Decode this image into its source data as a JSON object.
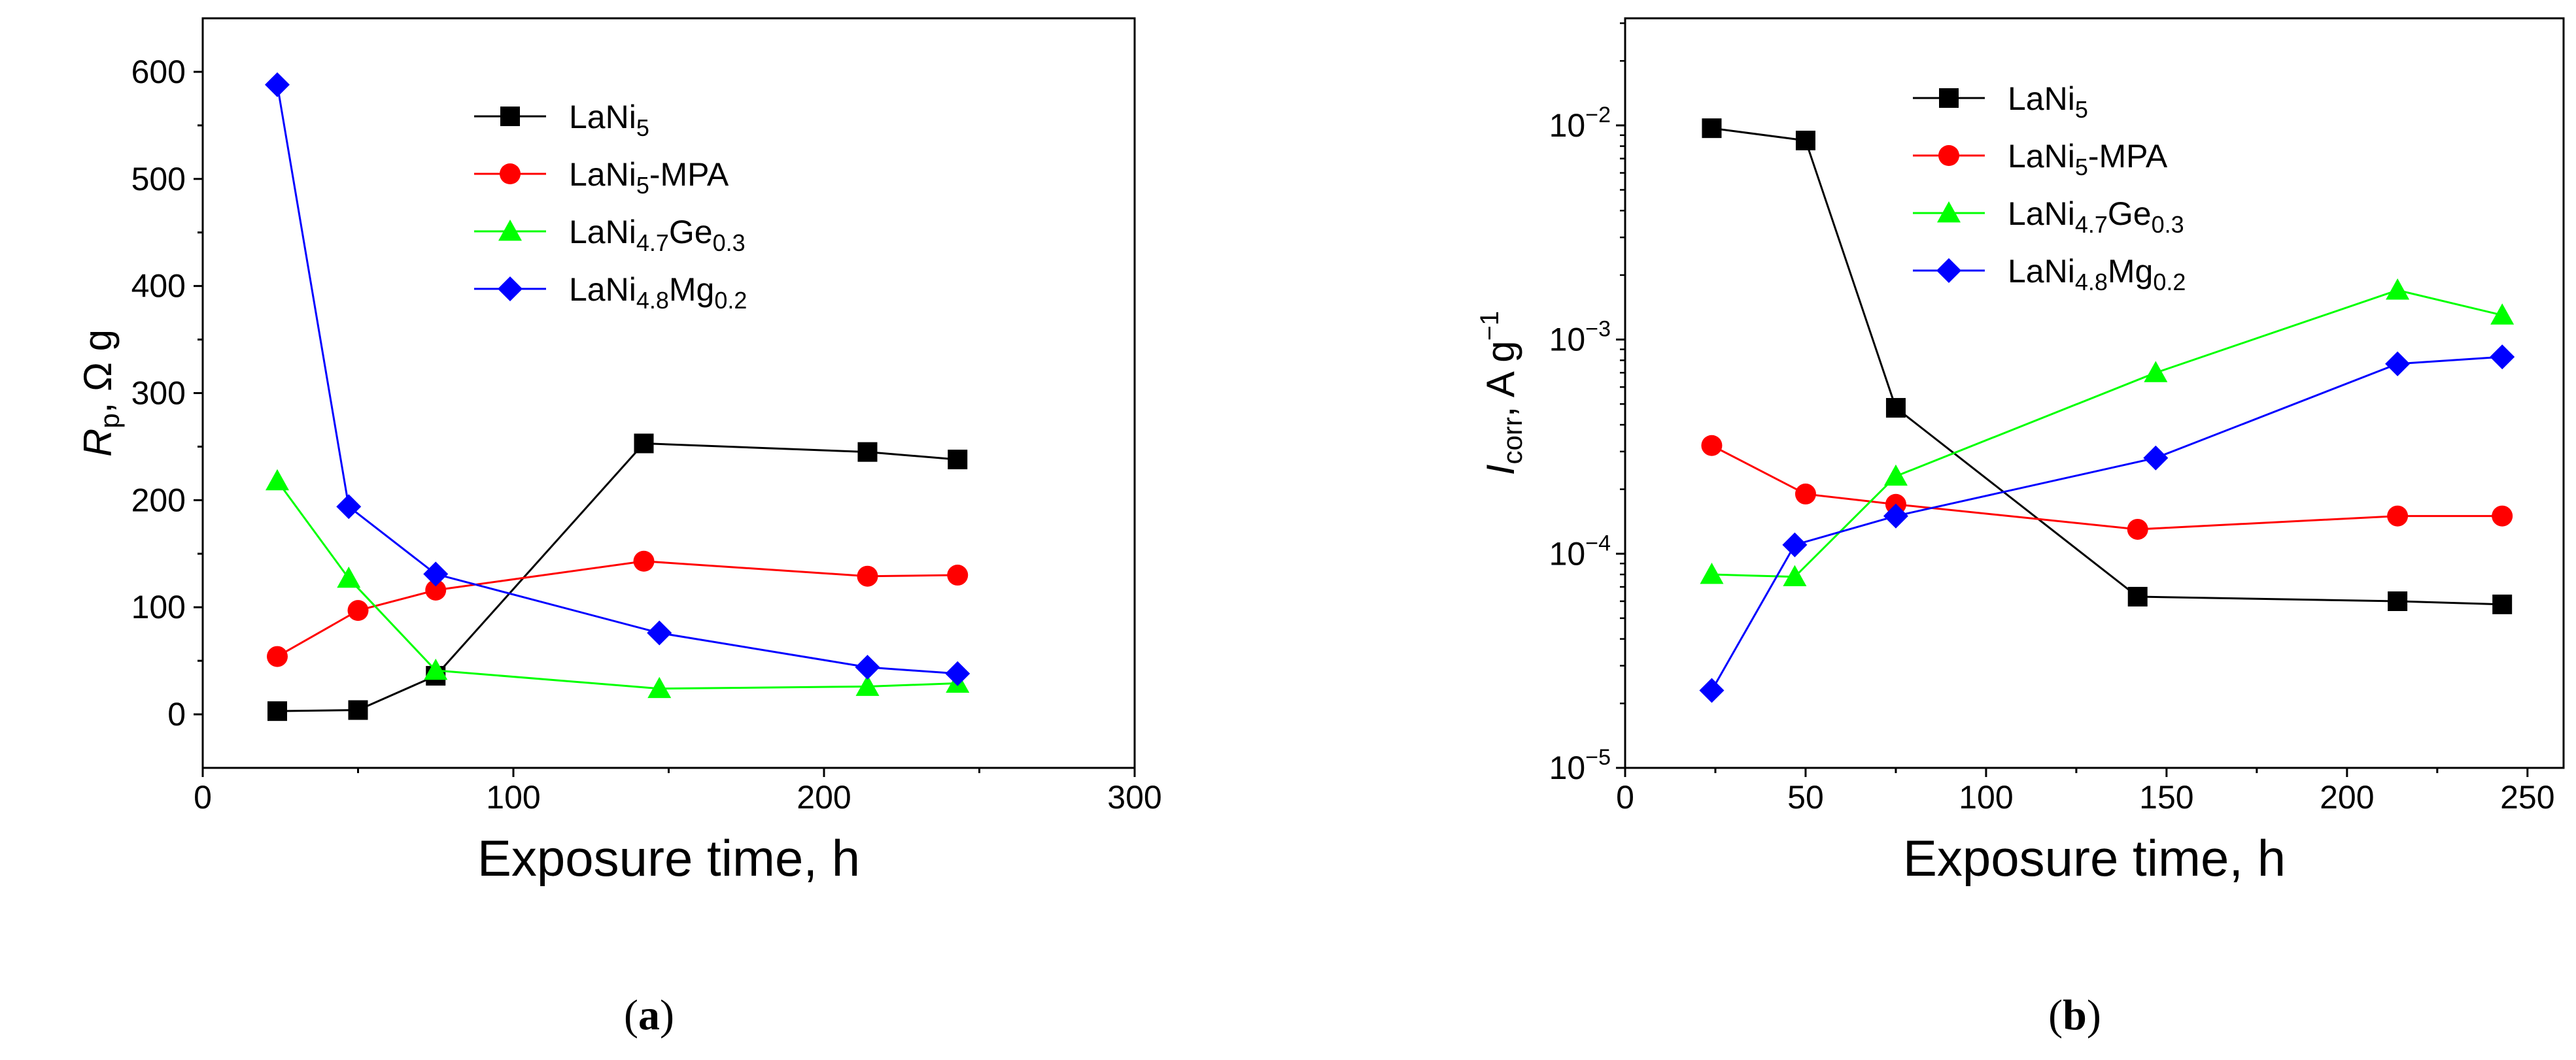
{
  "chart_data": [
    {
      "type": "line",
      "panel_label": "a",
      "xlabel": "Exposure time, h",
      "ylabel": {
        "main": "R",
        "sub": "p",
        "rest": ", Ω g"
      },
      "xlim": [
        0,
        300
      ],
      "ylim": [
        -50,
        650
      ],
      "xticks": [
        0,
        100,
        200,
        300
      ],
      "yticks": [
        0,
        100,
        200,
        300,
        400,
        500,
        600
      ],
      "yscale": "linear",
      "legend_placement": "top-center",
      "series": [
        {
          "name": "LaNi5",
          "name_parts": [
            [
              "LaNi",
              ""
            ],
            [
              "5",
              "sub"
            ]
          ],
          "color": "#000000",
          "marker": "square",
          "x": [
            24,
            50,
            75,
            142,
            214,
            243
          ],
          "y": [
            3,
            4,
            36,
            253,
            245,
            238
          ]
        },
        {
          "name": "LaNi5-MPA",
          "name_parts": [
            [
              "LaNi",
              ""
            ],
            [
              "5",
              "sub"
            ],
            [
              "-MPA",
              ""
            ]
          ],
          "color": "#ff0000",
          "marker": "circle",
          "x": [
            24,
            50,
            75,
            142,
            214,
            243
          ],
          "y": [
            54,
            97,
            116,
            143,
            129,
            130
          ]
        },
        {
          "name": "LaNi4.7Ge0.3",
          "name_parts": [
            [
              "LaNi",
              ""
            ],
            [
              "4.7",
              "sub"
            ],
            [
              "Ge",
              ""
            ],
            [
              "0.3",
              "sub"
            ]
          ],
          "color": "#00ff00",
          "marker": "triangle",
          "x": [
            24,
            47,
            75,
            147,
            214,
            243
          ],
          "y": [
            218,
            127,
            41,
            24,
            26,
            29
          ]
        },
        {
          "name": "LaNi4.8Mg0.2",
          "name_parts": [
            [
              "LaNi",
              ""
            ],
            [
              "4.8",
              "sub"
            ],
            [
              "Mg",
              ""
            ],
            [
              "0.2",
              "sub"
            ]
          ],
          "color": "#0000ff",
          "marker": "diamond",
          "x": [
            24,
            47,
            75,
            147,
            214,
            243
          ],
          "y": [
            588,
            194,
            131,
            76,
            44,
            38
          ]
        }
      ]
    },
    {
      "type": "line",
      "panel_label": "b",
      "xlabel": "Exposure time, h",
      "ylabel": {
        "main": "I",
        "sub": "corr",
        "rest": ", A g",
        "sup": "−1"
      },
      "xlim": [
        0,
        260
      ],
      "ylim_log10": [
        -5,
        -1.5
      ],
      "xticks": [
        0,
        50,
        100,
        150,
        200,
        250
      ],
      "yticks_log10": [
        -5,
        -4,
        -3,
        -2
      ],
      "yscale": "log",
      "legend_placement": "top-center",
      "series": [
        {
          "name": "LaNi5",
          "name_parts": [
            [
              "LaNi",
              ""
            ],
            [
              "5",
              "sub"
            ]
          ],
          "color": "#000000",
          "marker": "square",
          "x": [
            24,
            50,
            75,
            142,
            214,
            243
          ],
          "y": [
            0.0097,
            0.0085,
            0.00048,
            6.3e-05,
            6e-05,
            5.8e-05
          ]
        },
        {
          "name": "LaNi5-MPA",
          "name_parts": [
            [
              "LaNi",
              ""
            ],
            [
              "5",
              "sub"
            ],
            [
              "-MPA",
              ""
            ]
          ],
          "color": "#ff0000",
          "marker": "circle",
          "x": [
            24,
            50,
            75,
            142,
            214,
            243
          ],
          "y": [
            0.00032,
            0.00019,
            0.00017,
            0.00013,
            0.00015,
            0.00015
          ]
        },
        {
          "name": "LaNi4.7Ge0.3",
          "name_parts": [
            [
              "LaNi",
              ""
            ],
            [
              "4.7",
              "sub"
            ],
            [
              "Ge",
              ""
            ],
            [
              "0.3",
              "sub"
            ]
          ],
          "color": "#00ff00",
          "marker": "triangle",
          "x": [
            24,
            47,
            75,
            147,
            214,
            243
          ],
          "y": [
            8e-05,
            7.8e-05,
            0.00023,
            0.0007,
            0.0017,
            0.0013
          ]
        },
        {
          "name": "LaNi4.8Mg0.2",
          "name_parts": [
            [
              "LaNi",
              ""
            ],
            [
              "4.8",
              "sub"
            ],
            [
              "Mg",
              ""
            ],
            [
              "0.2",
              "sub"
            ]
          ],
          "color": "#0000ff",
          "marker": "diamond",
          "x": [
            24,
            47,
            75,
            147,
            214,
            243
          ],
          "y": [
            2.3e-05,
            0.00011,
            0.00015,
            0.00028,
            0.00077,
            0.00083
          ]
        }
      ]
    }
  ]
}
